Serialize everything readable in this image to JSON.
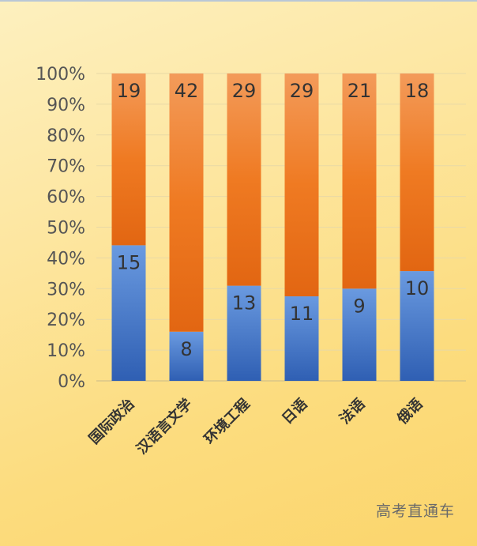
{
  "chart_data": {
    "type": "bar",
    "stacked": true,
    "percent": true,
    "categories": [
      "国际政治",
      "汉语言文学",
      "环境工程",
      "日语",
      "法语",
      "俄语"
    ],
    "series": [
      {
        "name": "bottom",
        "color": "#3a6fc4",
        "values": [
          15,
          8,
          13,
          11,
          9,
          10
        ]
      },
      {
        "name": "top",
        "color": "#f07f2b",
        "values": [
          19,
          42,
          29,
          29,
          21,
          18
        ]
      }
    ],
    "y_ticks": [
      "0%",
      "10%",
      "20%",
      "30%",
      "40%",
      "50%",
      "60%",
      "70%",
      "80%",
      "90%",
      "100%"
    ],
    "ylim": [
      0,
      100
    ],
    "grid": true,
    "legend": "none"
  },
  "watermark": "高考直通车"
}
